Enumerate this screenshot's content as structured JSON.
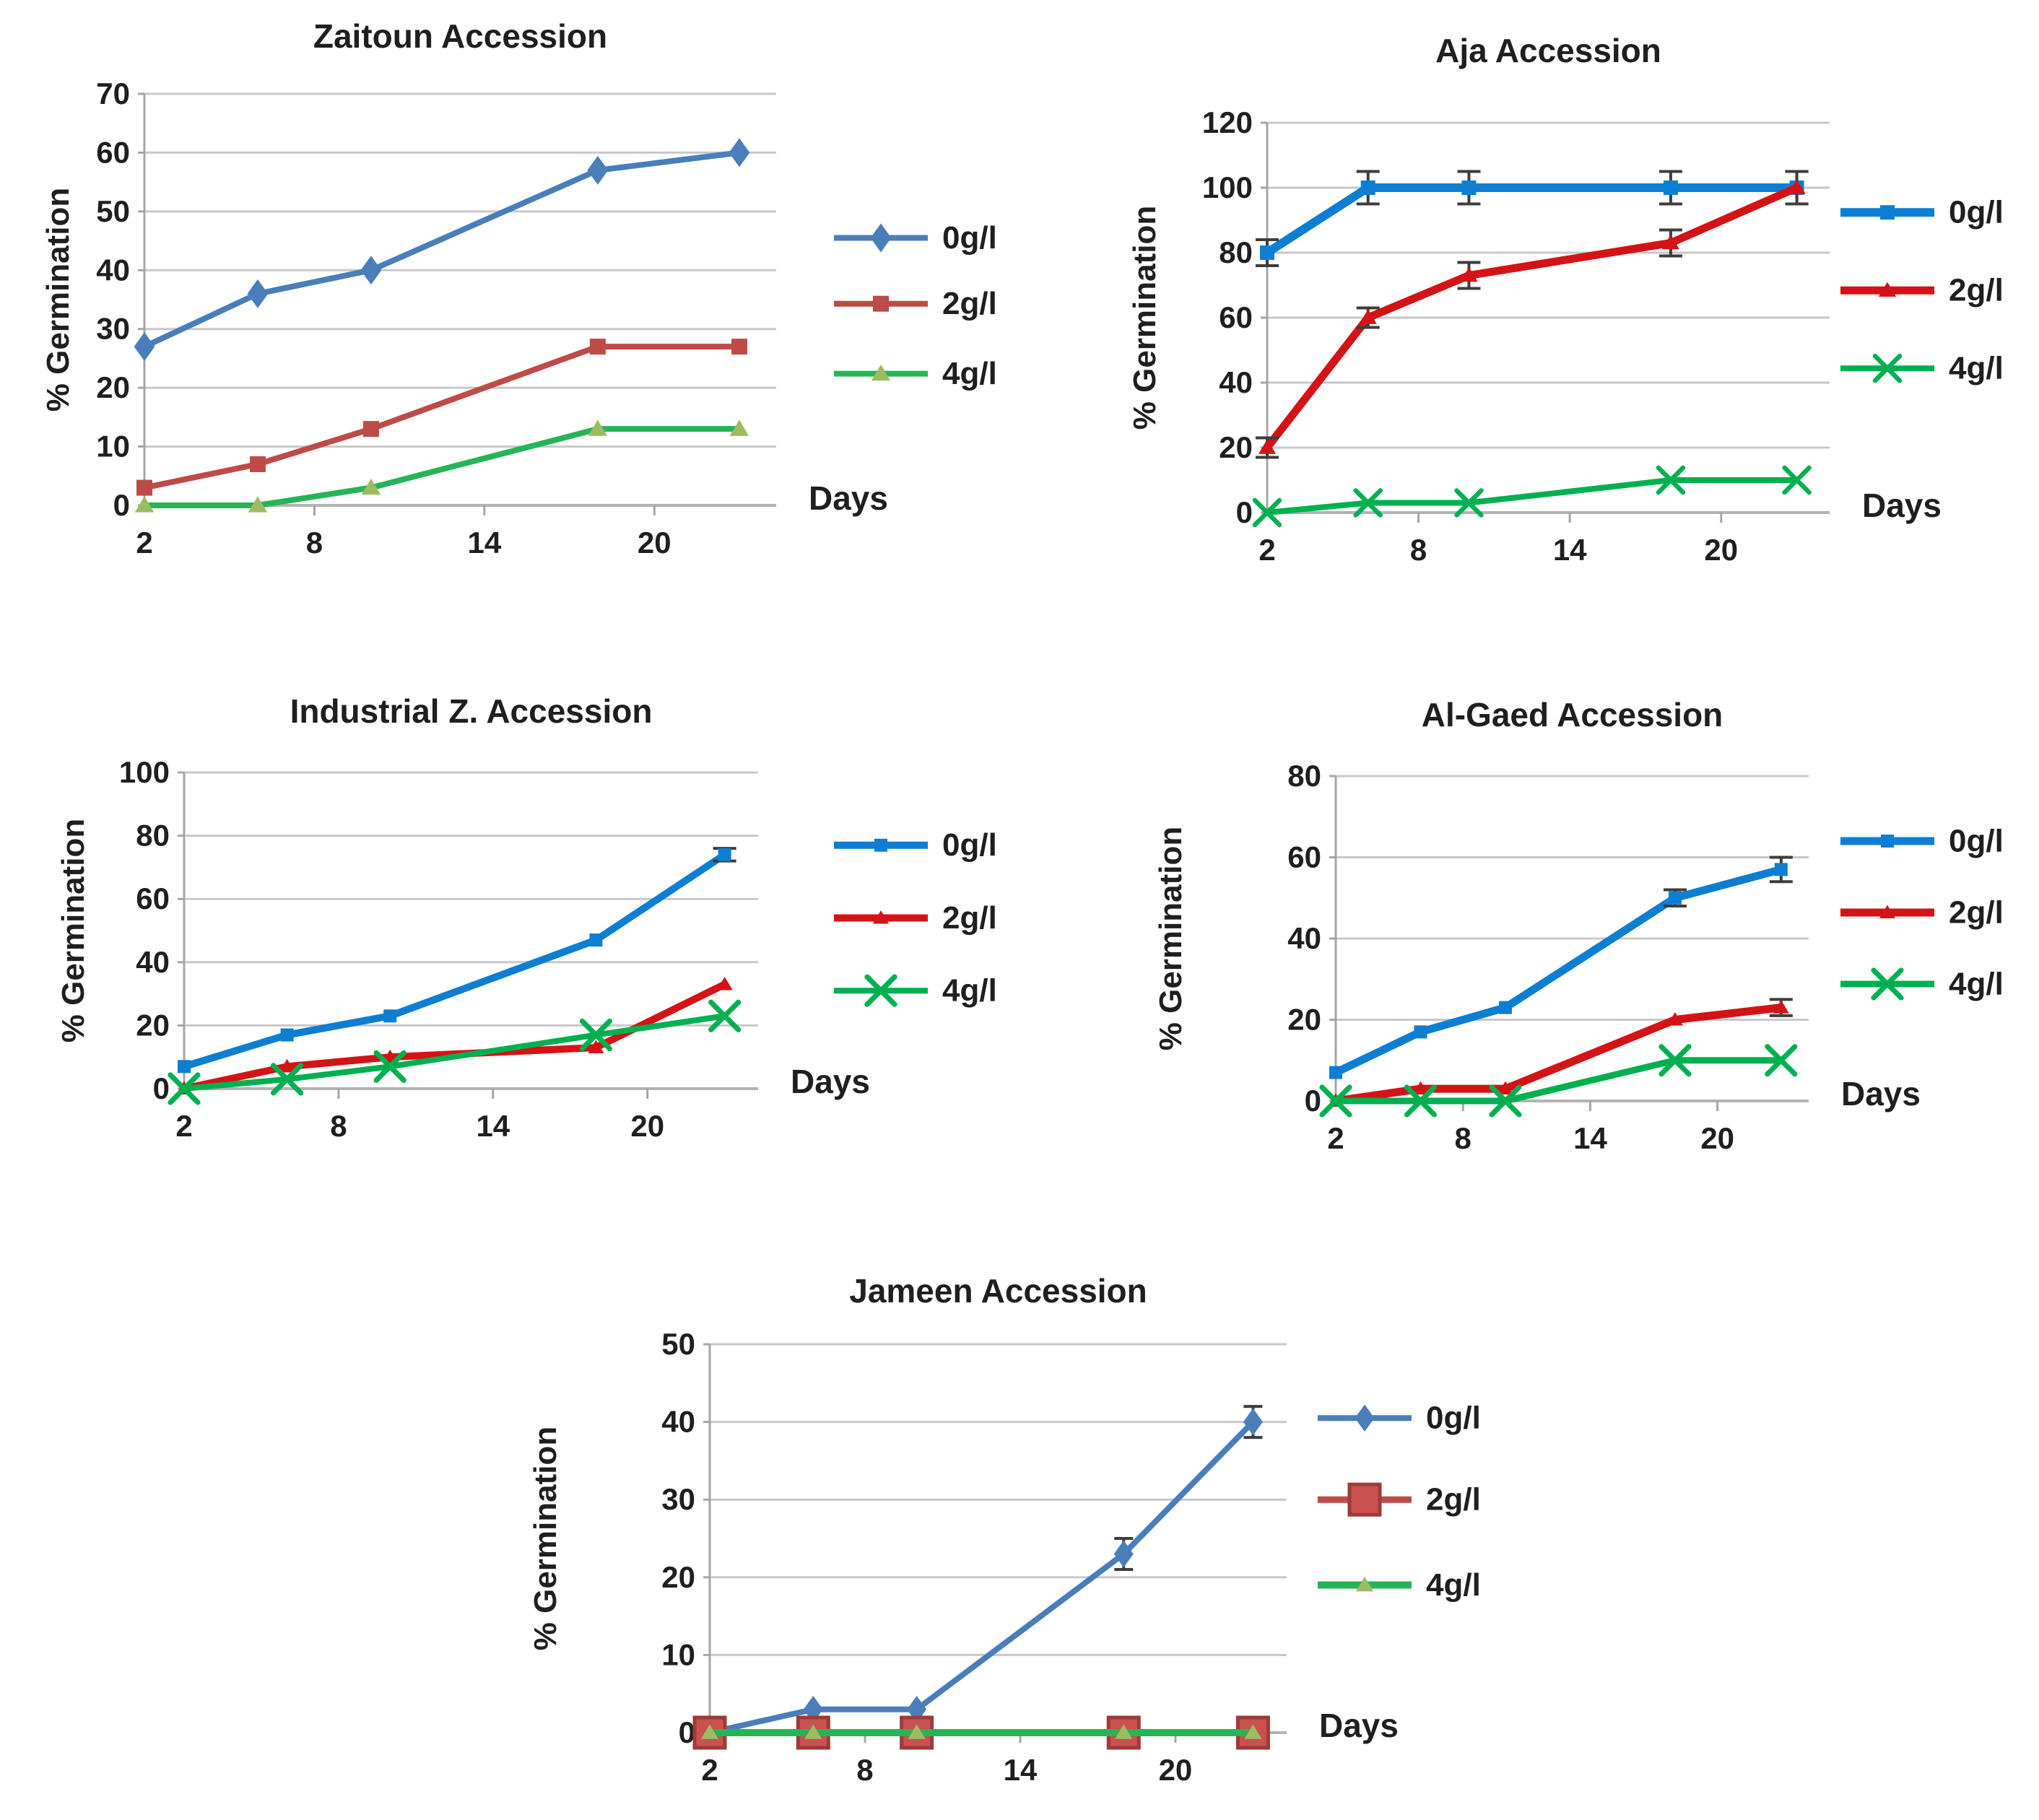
{
  "figure": {
    "description": "Germination percentage of five accessions over days at three salt concentrations",
    "xlabel": "Days",
    "ylabel": "% Germination",
    "legend_entries": [
      "0g/l",
      "2g/l",
      "4g/l"
    ],
    "colors": {
      "soft_blue": "#4a7ebb",
      "brick_red": "#be4b48",
      "vivid_blue": "#0e7ed3",
      "vivid_red": "#d41316",
      "green": "#27b457",
      "bright_green": "#00b050",
      "yellow_green_marker": "#9dbb61",
      "grid": "#c8c8c8",
      "axis": "#a6a6a6",
      "error_bar": "#3d3d3d",
      "text": "#1f1f1f"
    }
  },
  "chart_data": [
    {
      "type": "line",
      "title": "Zaitoun Accession",
      "xlabel": "Days",
      "ylabel": "% Germination",
      "x": [
        2,
        6,
        10,
        18,
        23
      ],
      "x_ticks": [
        2,
        8,
        14,
        20
      ],
      "xlim": [
        2,
        24.3
      ],
      "ylim": [
        0,
        70
      ],
      "ytick_step": 10,
      "grid": true,
      "legend_position": "right",
      "series": [
        {
          "name": "0g/l",
          "color": "#4a7ebb",
          "marker": "diamond",
          "marker_color": "#4a7ebb",
          "marker_size": 16,
          "line_width": 8,
          "values": [
            27,
            36,
            40,
            57,
            60
          ],
          "errors": [
            0,
            0,
            0,
            0,
            0
          ]
        },
        {
          "name": "2g/l",
          "color": "#be4b48",
          "marker": "square",
          "marker_color": "#be4b48",
          "marker_size": 11,
          "line_width": 8,
          "values": [
            3,
            7,
            13,
            27,
            27
          ],
          "errors": [
            0,
            0,
            0,
            0,
            0
          ]
        },
        {
          "name": "4g/l",
          "color": "#27b457",
          "marker": "triangle",
          "marker_color": "#9dbb61",
          "marker_size": 12,
          "line_width": 8,
          "values": [
            0,
            0,
            3,
            13,
            13
          ],
          "errors": [
            0,
            0,
            0,
            0,
            0
          ]
        }
      ]
    },
    {
      "type": "line",
      "title": "Aja Accession",
      "xlabel": "Days",
      "ylabel": "% Germination",
      "x": [
        2,
        6,
        10,
        18,
        23
      ],
      "x_ticks": [
        2,
        8,
        14,
        20
      ],
      "xlim": [
        2,
        24.3
      ],
      "ylim": [
        0,
        120
      ],
      "ytick_step": 20,
      "grid": true,
      "legend_position": "right",
      "series": [
        {
          "name": "0g/l",
          "color": "#0e7ed3",
          "marker": "square",
          "marker_color": "#0e7ed3",
          "marker_size": 10,
          "line_width": 12,
          "values": [
            80,
            100,
            100,
            100,
            100
          ],
          "errors": [
            4,
            5,
            5,
            5,
            5
          ]
        },
        {
          "name": "2g/l",
          "color": "#d41316",
          "marker": "triangle",
          "marker_color": "#d41316",
          "marker_size": 11,
          "line_width": 11,
          "values": [
            20,
            60,
            73,
            83,
            100
          ],
          "errors": [
            3,
            3,
            4,
            4,
            5
          ]
        },
        {
          "name": "4g/l",
          "color": "#00b050",
          "marker": "x",
          "marker_color": "#00b050",
          "marker_size": 17,
          "line_width": 8,
          "values": [
            0,
            3,
            3,
            10,
            10
          ],
          "errors": [
            0,
            0,
            0,
            0,
            0
          ]
        }
      ]
    },
    {
      "type": "line",
      "title": "Industrial Z. Accession",
      "xlabel": "Days",
      "ylabel": "% Germination",
      "x": [
        2,
        6,
        10,
        18,
        23
      ],
      "x_ticks": [
        2,
        8,
        14,
        20
      ],
      "xlim": [
        2,
        24.3
      ],
      "ylim": [
        0,
        100
      ],
      "ytick_step": 20,
      "grid": true,
      "legend_position": "right",
      "series": [
        {
          "name": "0g/l",
          "color": "#0e7ed3",
          "marker": "square",
          "marker_color": "#0e7ed3",
          "marker_size": 9,
          "line_width": 10,
          "values": [
            7,
            17,
            23,
            47,
            74
          ],
          "errors": [
            0,
            0,
            0,
            0,
            2
          ]
        },
        {
          "name": "2g/l",
          "color": "#d41316",
          "marker": "triangle",
          "marker_color": "#d41316",
          "marker_size": 10,
          "line_width": 10,
          "values": [
            0,
            7,
            10,
            13,
            33
          ],
          "errors": [
            0,
            0,
            0,
            0,
            0
          ]
        },
        {
          "name": "4g/l",
          "color": "#00b050",
          "marker": "x",
          "marker_color": "#00b050",
          "marker_size": 19,
          "line_width": 8,
          "values": [
            0,
            3,
            7,
            17,
            23
          ],
          "errors": [
            0,
            0,
            0,
            0,
            0
          ]
        }
      ]
    },
    {
      "type": "line",
      "title": "Al-Gaed Accession",
      "xlabel": "Days",
      "ylabel": "% Germination",
      "x": [
        2,
        6,
        10,
        18,
        23
      ],
      "x_ticks": [
        2,
        8,
        14,
        20
      ],
      "xlim": [
        2,
        24.3
      ],
      "ylim": [
        0,
        80
      ],
      "ytick_step": 20,
      "grid": true,
      "legend_position": "right",
      "series": [
        {
          "name": "0g/l",
          "color": "#0e7ed3",
          "marker": "square",
          "marker_color": "#0e7ed3",
          "marker_size": 9,
          "line_width": 11,
          "values": [
            7,
            17,
            23,
            50,
            57
          ],
          "errors": [
            0,
            0,
            0,
            2,
            3
          ]
        },
        {
          "name": "2g/l",
          "color": "#d41316",
          "marker": "triangle",
          "marker_color": "#d41316",
          "marker_size": 10,
          "line_width": 11,
          "values": [
            0,
            3,
            3,
            20,
            23
          ],
          "errors": [
            0,
            0,
            0,
            0,
            2
          ]
        },
        {
          "name": "4g/l",
          "color": "#00b050",
          "marker": "x",
          "marker_color": "#00b050",
          "marker_size": 19,
          "line_width": 9,
          "values": [
            0,
            0,
            0,
            10,
            10
          ],
          "errors": [
            0,
            0,
            0,
            0,
            0
          ]
        }
      ]
    },
    {
      "type": "line",
      "title": "Jameen Accession",
      "xlabel": "Days",
      "ylabel": "% Germination",
      "x": [
        2,
        6,
        10,
        18,
        23
      ],
      "x_ticks": [
        2,
        8,
        14,
        20
      ],
      "xlim": [
        2,
        24.3
      ],
      "ylim": [
        0,
        50
      ],
      "ytick_step": 10,
      "grid": true,
      "legend_position": "right",
      "series": [
        {
          "name": "0g/l",
          "color": "#4a7ebb",
          "marker": "diamond",
          "marker_color": "#4a7ebb",
          "marker_size": 15,
          "line_width": 8,
          "values": [
            0,
            3,
            3,
            23,
            40
          ],
          "errors": [
            0,
            0,
            0,
            2,
            2
          ]
        },
        {
          "name": "2g/l",
          "color": "#be4b48",
          "marker": "square",
          "marker_color": "#c8524f",
          "marker_stroke": "#9e3a38",
          "marker_size": 21,
          "line_width": 9,
          "values": [
            0,
            0,
            0,
            0,
            0
          ],
          "errors": [
            0,
            0,
            0,
            0,
            0
          ]
        },
        {
          "name": "4g/l",
          "color": "#27b457",
          "marker": "triangle",
          "marker_color": "#9dbb61",
          "marker_size": 11,
          "line_width": 10,
          "values": [
            0,
            0,
            0,
            0,
            0
          ],
          "errors": [
            0,
            0,
            0,
            0,
            0
          ]
        }
      ]
    }
  ]
}
